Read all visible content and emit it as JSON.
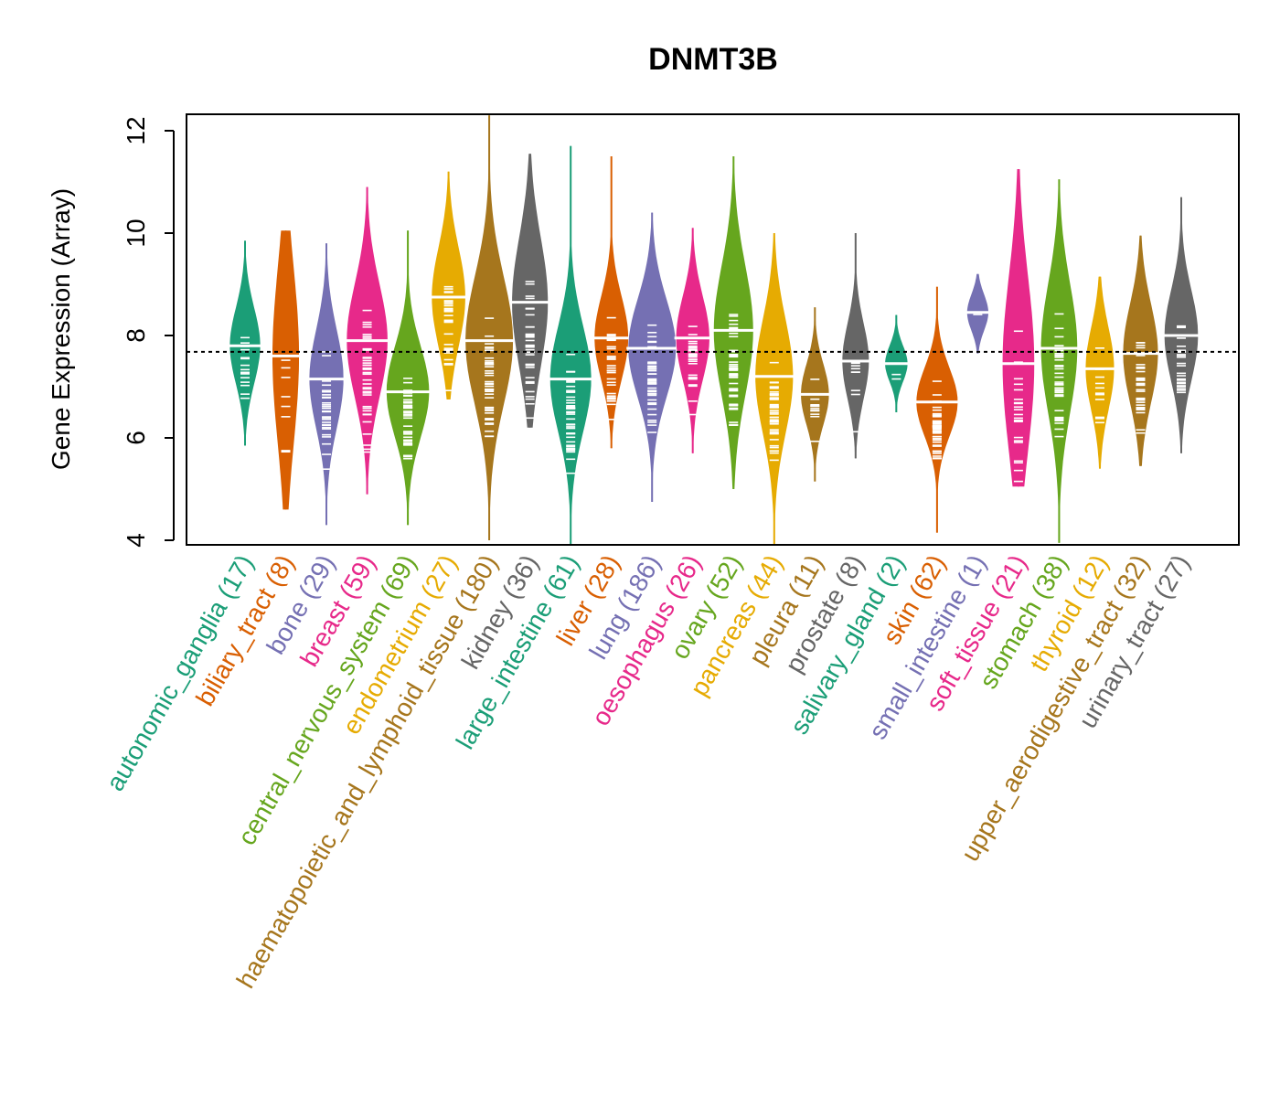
{
  "chart_data": {
    "type": "beanplot",
    "title": "DNMT3B",
    "xlabel": "",
    "ylabel": "Gene Expression (Array)",
    "ylim": [
      4,
      12.3
    ],
    "yticks": [
      4,
      6,
      8,
      10,
      12
    ],
    "reference_line": 7.68,
    "grid": false,
    "legend": "none",
    "categories": [
      {
        "name": "autonomic_ganglia",
        "n": 17,
        "color": "#1B9E77",
        "median": 7.8,
        "min": 5.85,
        "max": 9.85,
        "q1": 7.2,
        "q3": 8.2
      },
      {
        "name": "biliary_tract",
        "n": 8,
        "color": "#D95F02",
        "median": 7.6,
        "min": 4.6,
        "max": 10.05,
        "q1": 6.0,
        "q3": 8.3
      },
      {
        "name": "bone",
        "n": 29,
        "color": "#7570B3",
        "median": 7.15,
        "min": 4.3,
        "max": 9.8,
        "q1": 6.5,
        "q3": 7.8
      },
      {
        "name": "breast",
        "n": 59,
        "color": "#E7298A",
        "median": 7.9,
        "min": 4.9,
        "max": 10.9,
        "q1": 7.1,
        "q3": 8.6
      },
      {
        "name": "central_nervous_system",
        "n": 69,
        "color": "#66A61E",
        "median": 6.9,
        "min": 4.3,
        "max": 10.05,
        "q1": 6.3,
        "q3": 7.5
      },
      {
        "name": "endometrium",
        "n": 27,
        "color": "#E6AB02",
        "median": 8.75,
        "min": 6.75,
        "max": 11.2,
        "q1": 7.9,
        "q3": 9.2
      },
      {
        "name": "haematopoietic_and_lymphoid_tissue",
        "n": 180,
        "color": "#A6761D",
        "median": 7.9,
        "min": 4.0,
        "max": 12.3,
        "q1": 7.0,
        "q3": 8.7
      },
      {
        "name": "kidney",
        "n": 36,
        "color": "#666666",
        "median": 8.65,
        "min": 6.2,
        "max": 11.55,
        "q1": 7.6,
        "q3": 9.3
      },
      {
        "name": "large_intestine",
        "n": 61,
        "color": "#1B9E77",
        "median": 7.15,
        "min": 3.9,
        "max": 11.7,
        "q1": 6.4,
        "q3": 7.8
      },
      {
        "name": "liver",
        "n": 28,
        "color": "#D95F02",
        "median": 7.95,
        "min": 5.8,
        "max": 11.5,
        "q1": 7.3,
        "q3": 8.4
      },
      {
        "name": "lung",
        "n": 186,
        "color": "#7570B3",
        "median": 7.75,
        "min": 4.75,
        "max": 10.4,
        "q1": 7.1,
        "q3": 8.4
      },
      {
        "name": "oesophagus",
        "n": 26,
        "color": "#E7298A",
        "median": 7.95,
        "min": 5.7,
        "max": 10.1,
        "q1": 7.4,
        "q3": 8.5
      },
      {
        "name": "ovary",
        "n": 52,
        "color": "#66A61E",
        "median": 8.1,
        "min": 5.0,
        "max": 11.5,
        "q1": 7.3,
        "q3": 9.0
      },
      {
        "name": "pancreas",
        "n": 44,
        "color": "#E6AB02",
        "median": 7.2,
        "min": 3.9,
        "max": 10.0,
        "q1": 6.4,
        "q3": 7.9
      },
      {
        "name": "pleura",
        "n": 11,
        "color": "#A6761D",
        "median": 6.85,
        "min": 5.15,
        "max": 8.55,
        "q1": 6.4,
        "q3": 7.2
      },
      {
        "name": "prostate",
        "n": 8,
        "color": "#666666",
        "median": 7.5,
        "min": 5.6,
        "max": 10.0,
        "q1": 6.9,
        "q3": 7.9
      },
      {
        "name": "salivary_gland",
        "n": 2,
        "color": "#1B9E77",
        "median": 7.45,
        "min": 6.5,
        "max": 8.4,
        "q1": 7.3,
        "q3": 7.7
      },
      {
        "name": "skin",
        "n": 62,
        "color": "#D95F02",
        "median": 6.7,
        "min": 4.15,
        "max": 8.95,
        "q1": 6.2,
        "q3": 7.1
      },
      {
        "name": "small_intestine",
        "n": 1,
        "color": "#7570B3",
        "median": 8.45,
        "min": 7.65,
        "max": 9.2,
        "q1": 8.3,
        "q3": 8.6
      },
      {
        "name": "soft_tissue",
        "n": 21,
        "color": "#E7298A",
        "median": 7.45,
        "min": 5.05,
        "max": 11.25,
        "q1": 7.0,
        "q3": 9.3
      },
      {
        "name": "stomach",
        "n": 38,
        "color": "#66A61E",
        "median": 7.75,
        "min": 3.95,
        "max": 11.05,
        "q1": 6.6,
        "q3": 8.3
      },
      {
        "name": "thyroid",
        "n": 12,
        "color": "#E6AB02",
        "median": 7.35,
        "min": 5.4,
        "max": 9.15,
        "q1": 6.8,
        "q3": 7.9
      },
      {
        "name": "upper_aerodigestive_tract",
        "n": 32,
        "color": "#A6761D",
        "median": 7.65,
        "min": 5.45,
        "max": 9.95,
        "q1": 7.0,
        "q3": 8.3
      },
      {
        "name": "urinary_tract",
        "n": 27,
        "color": "#666666",
        "median": 8.0,
        "min": 5.7,
        "max": 10.7,
        "q1": 7.3,
        "q3": 8.5
      }
    ]
  }
}
